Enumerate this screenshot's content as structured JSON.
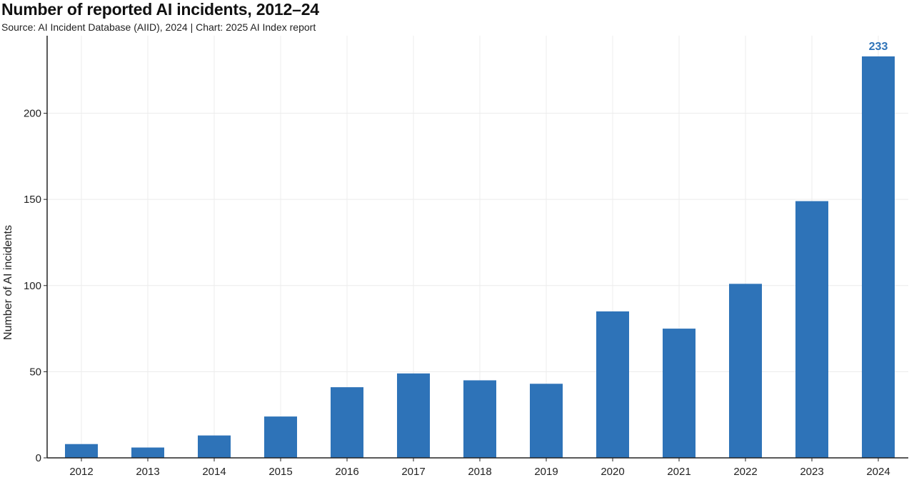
{
  "title": "Number of reported AI incidents, 2012–24",
  "subtitle": "Source: AI Incident Database (AIID), 2024 | Chart: 2025 AI Index report",
  "chart_data": {
    "type": "bar",
    "title": "Number of reported AI incidents, 2012–24",
    "xlabel": "",
    "ylabel": "Number of AI incidents",
    "categories": [
      "2012",
      "2013",
      "2014",
      "2015",
      "2016",
      "2017",
      "2018",
      "2019",
      "2020",
      "2021",
      "2022",
      "2023",
      "2024"
    ],
    "values": [
      8,
      6,
      13,
      24,
      41,
      49,
      45,
      43,
      85,
      75,
      101,
      149,
      233
    ],
    "ylim": [
      0,
      245
    ],
    "yticks": [
      0,
      50,
      100,
      150,
      200
    ],
    "grid": true,
    "legend": "none",
    "data_labels": [
      {
        "category": "2024",
        "text": "233"
      }
    ],
    "colors": {
      "bar": "#2e73b8",
      "label": "#2e73b8",
      "grid": "#ececec",
      "axis": "#222222"
    }
  }
}
